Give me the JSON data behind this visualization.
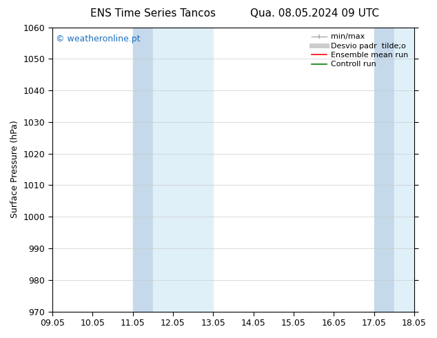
{
  "title_left": "ENS Time Series Tancos",
  "title_right": "Qua. 08.05.2024 09 UTC",
  "ylabel": "Surface Pressure (hPa)",
  "ylim": [
    970,
    1060
  ],
  "yticks": [
    970,
    980,
    990,
    1000,
    1010,
    1020,
    1030,
    1040,
    1050,
    1060
  ],
  "x_tick_labels": [
    "09.05",
    "10.05",
    "11.05",
    "12.05",
    "13.05",
    "14.05",
    "15.05",
    "16.05",
    "17.05",
    "18.05"
  ],
  "x_tick_positions": [
    0,
    1,
    2,
    3,
    4,
    5,
    6,
    7,
    8,
    9
  ],
  "xlim": [
    0,
    9
  ],
  "shade_bands_dark": [
    {
      "xmin": 2,
      "xmax": 2.5
    },
    {
      "xmin": 8,
      "xmax": 8.5
    }
  ],
  "shade_bands_light": [
    {
      "xmin": 2.5,
      "xmax": 4
    },
    {
      "xmin": 8.5,
      "xmax": 9
    }
  ],
  "shade_color_dark": "#c5d9ea",
  "shade_color_light": "#dff0f9",
  "watermark": "© weatheronline.pt",
  "watermark_color": "#1a6fbd",
  "legend_labels": [
    "min/max",
    "Desvio padr  tilde;o",
    "Ensemble mean run",
    "Controll run"
  ],
  "legend_colors": [
    "#aaaaaa",
    "#cccccc",
    "red",
    "green"
  ],
  "legend_lws": [
    1.0,
    5,
    1.2,
    1.2
  ],
  "background_color": "#ffffff",
  "grid_color": "#cccccc",
  "title_fontsize": 11,
  "axis_fontsize": 9,
  "tick_fontsize": 9,
  "legend_fontsize": 8
}
